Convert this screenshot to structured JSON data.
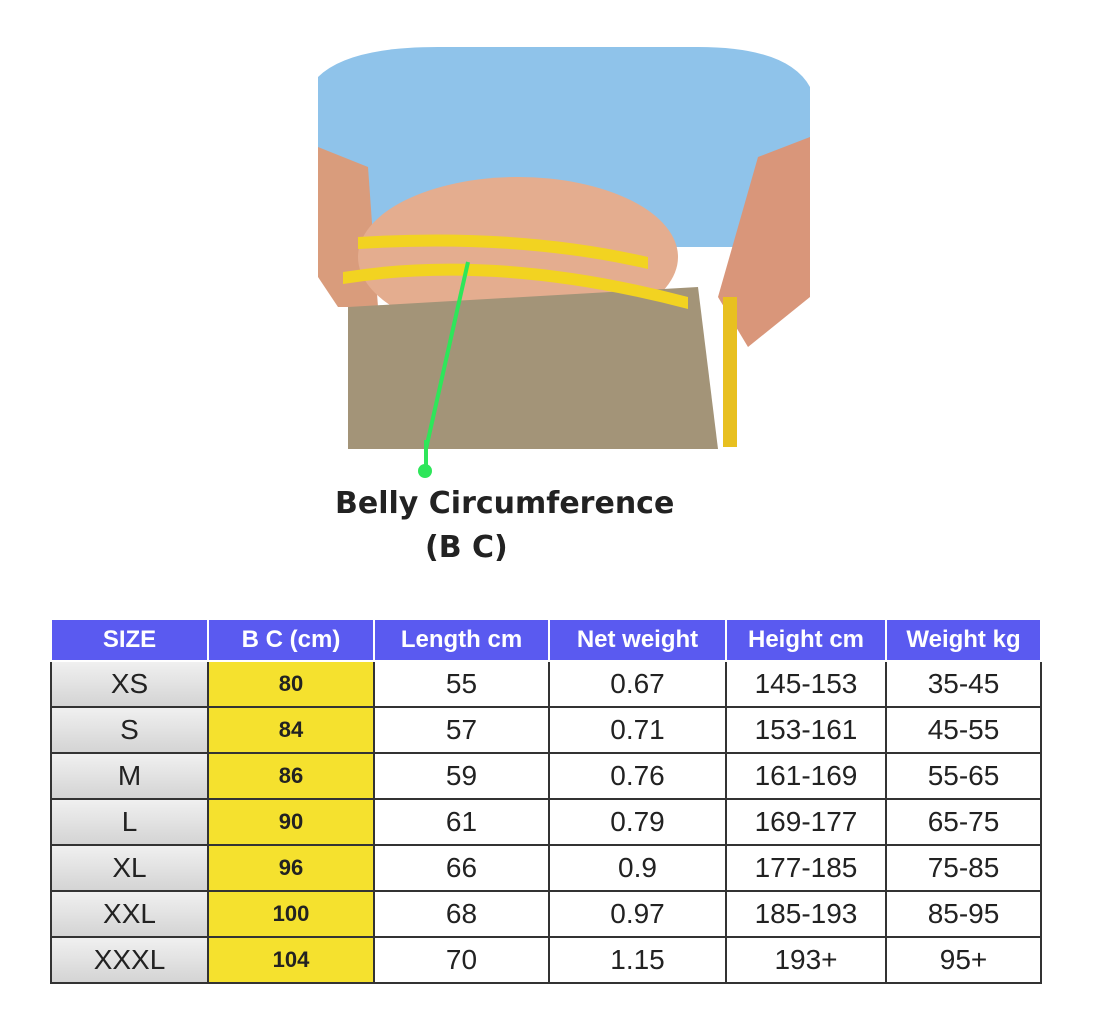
{
  "caption": {
    "line1": "Belly Circumference",
    "line2": "(B C)"
  },
  "table": {
    "header": [
      "SIZE",
      "B C (cm)",
      "Length cm",
      "Net weight",
      "Height cm",
      "Weight kg"
    ],
    "rows": [
      [
        "XS",
        "80",
        "55",
        "0.67",
        "145-153",
        "35-45"
      ],
      [
        "S",
        "84",
        "57",
        "0.71",
        "153-161",
        "45-55"
      ],
      [
        "M",
        "86",
        "59",
        "0.76",
        "161-169",
        "55-65"
      ],
      [
        "L",
        "90",
        "61",
        "0.79",
        "169-177",
        "65-75"
      ],
      [
        "XL",
        "96",
        "66",
        "0.9",
        "177-185",
        "75-85"
      ],
      [
        "XXL",
        "100",
        "68",
        "0.97",
        "185-193",
        "85-95"
      ],
      [
        "XXXL",
        "104",
        "70",
        "1.15",
        "193+",
        "95+"
      ]
    ]
  }
}
